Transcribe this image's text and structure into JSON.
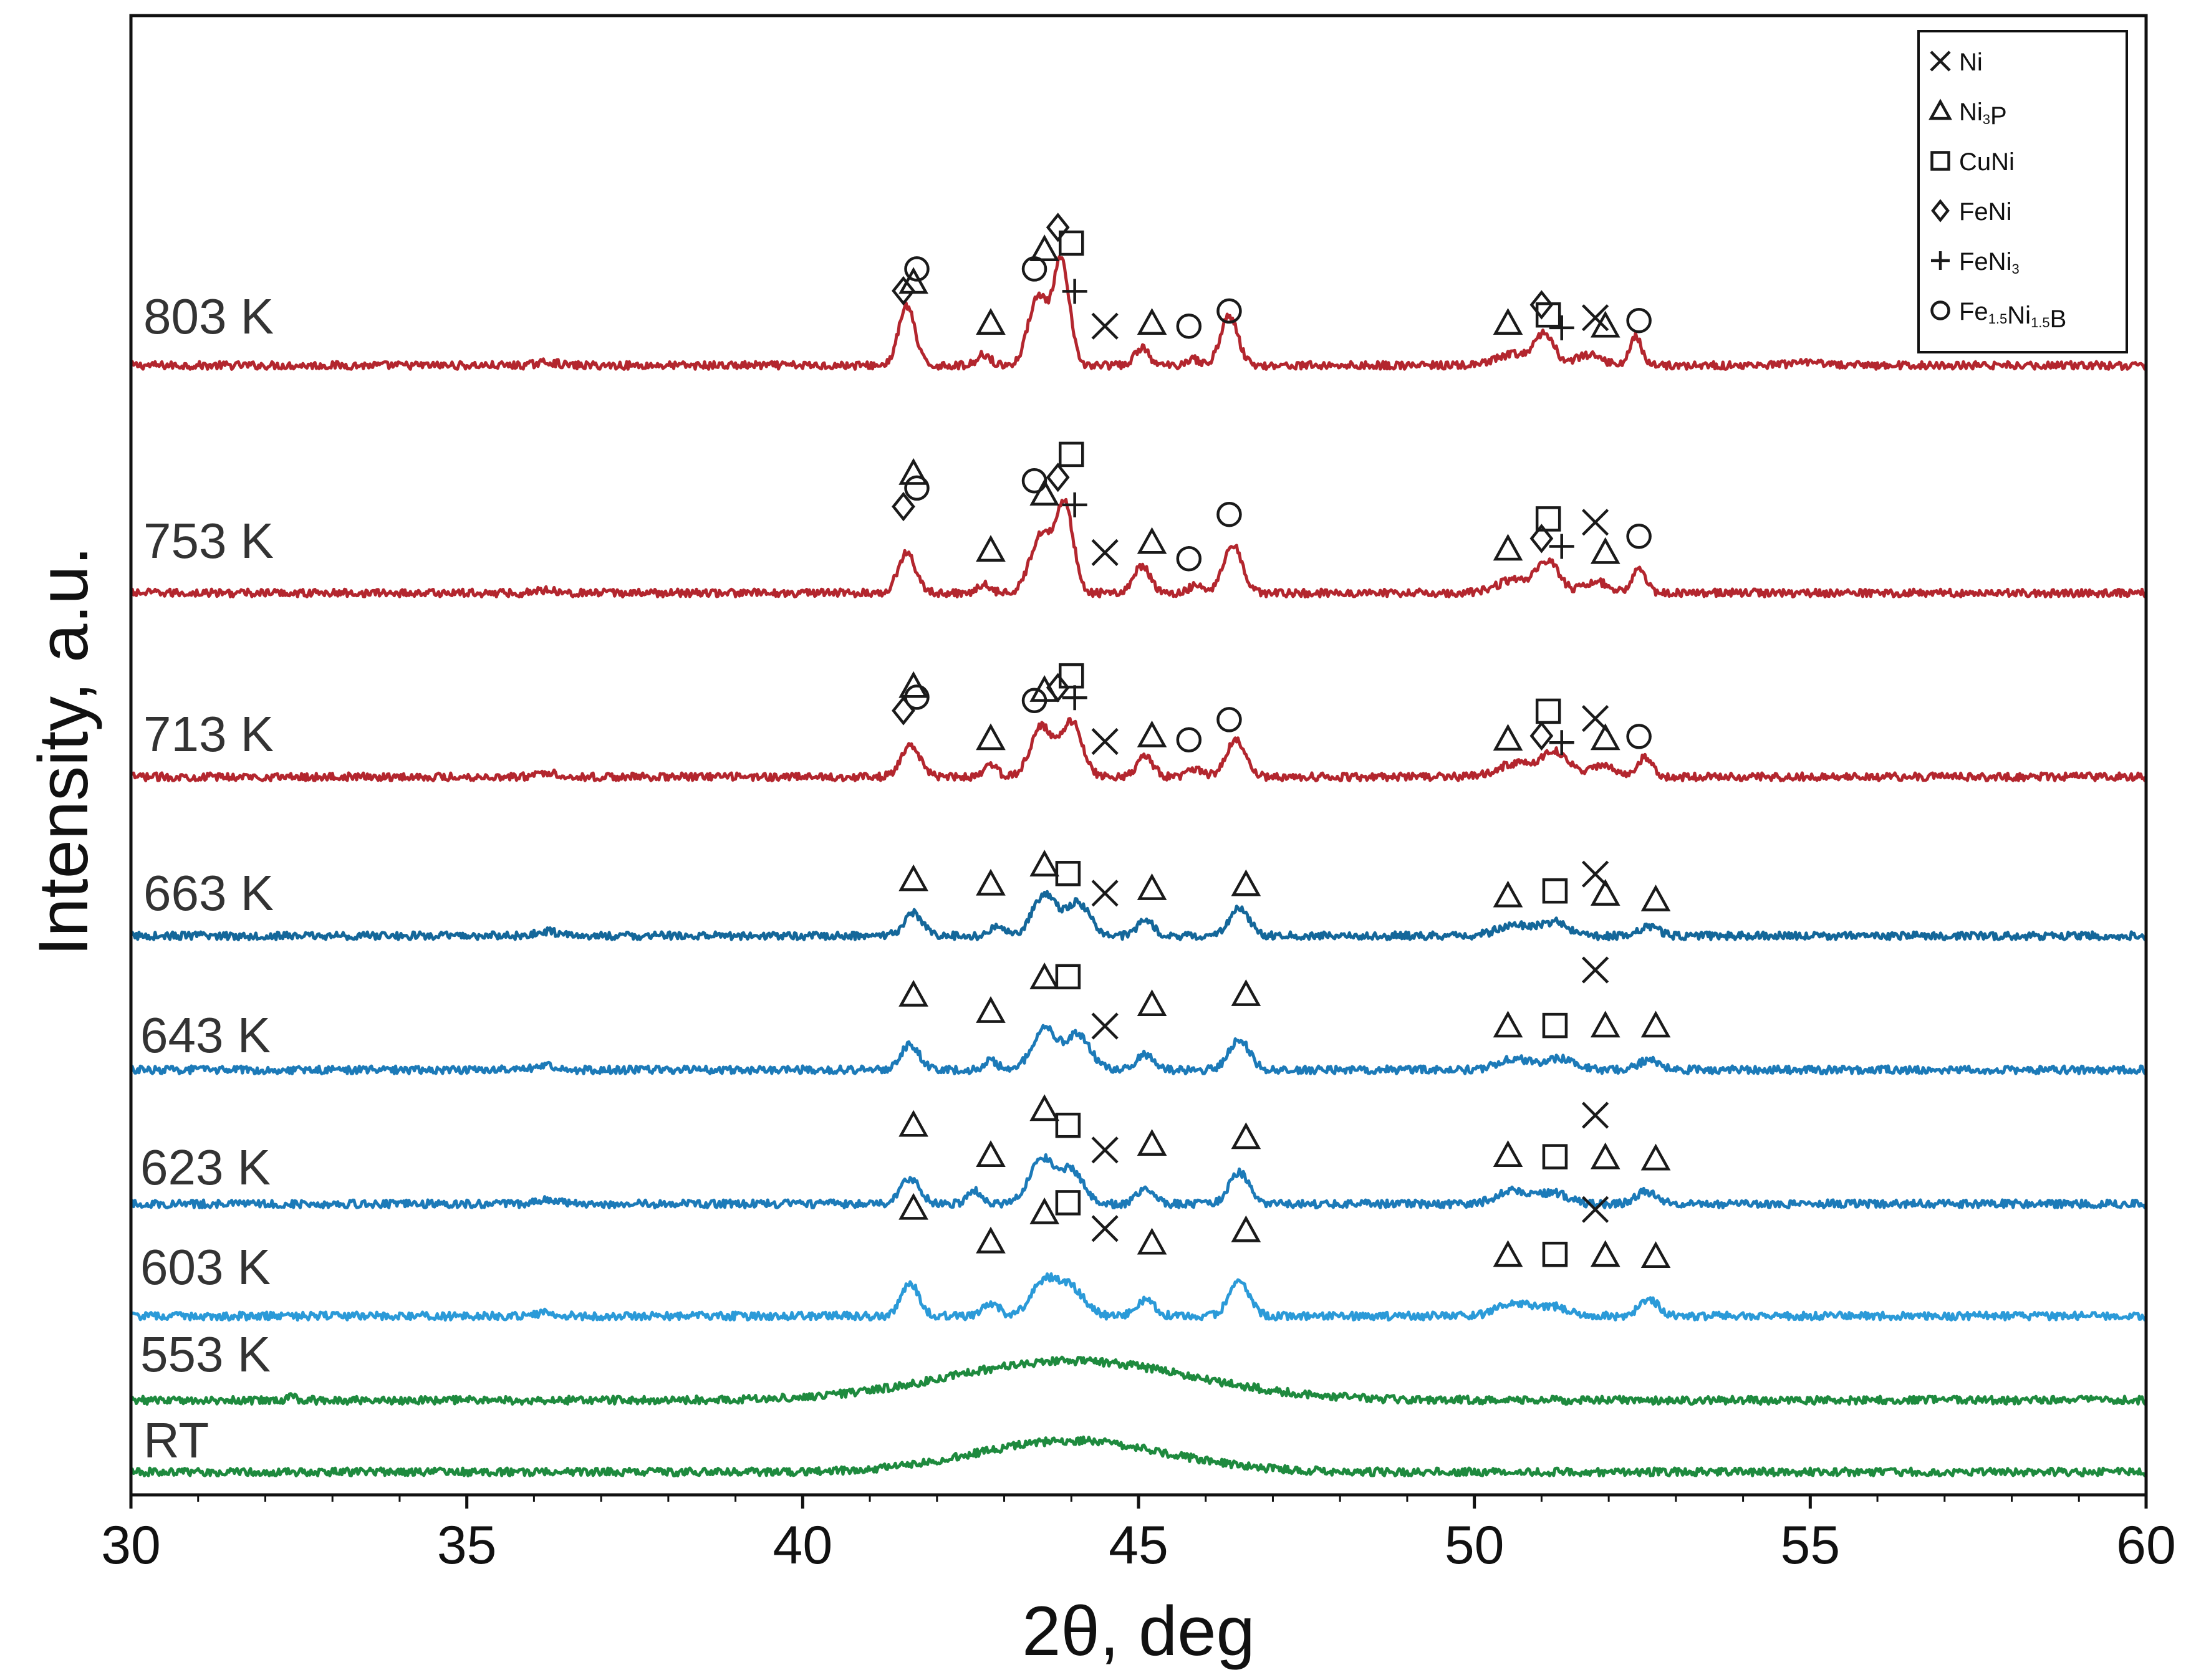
{
  "chart_data": {
    "type": "line",
    "title": "",
    "xlabel": "2θ, deg",
    "ylabel": "Intensity, a.u.",
    "xlim": [
      30,
      60
    ],
    "xticks": [
      30,
      35,
      40,
      45,
      50,
      55,
      60
    ],
    "yticks_shown": false,
    "colors": {
      "red": "#b3262e",
      "blue_dark": "#14679a",
      "blue_mid": "#1c7ab8",
      "blue_light": "#2b9ad8",
      "green": "#1e8a3e",
      "frame": "#111111",
      "marker": "#1a1a1a"
    },
    "legend": {
      "placement": "top-right",
      "entries": [
        {
          "marker": "x",
          "label": "Ni",
          "label_main": "Ni",
          "label_sub": "",
          "label_tail": ""
        },
        {
          "marker": "triangle",
          "label": "Ni3P",
          "label_main": "Ni",
          "label_sub": "3",
          "label_tail": "P"
        },
        {
          "marker": "square",
          "label": "CuNi",
          "label_main": "CuNi",
          "label_sub": "",
          "label_tail": ""
        },
        {
          "marker": "diamond",
          "label": "FeNi",
          "label_main": "FeNi",
          "label_sub": "",
          "label_tail": ""
        },
        {
          "marker": "plus",
          "label": "FeNi3",
          "label_main": "FeNi",
          "label_sub": "3",
          "label_tail": ""
        },
        {
          "marker": "circle",
          "label": "Fe1.5Ni1.5B",
          "label_main": "Fe",
          "label_sub": "1.5",
          "label_tail": "Ni",
          "label_sub2": "1.5",
          "label_tail2": "B"
        }
      ]
    },
    "series": [
      {
        "name": "803 K",
        "color": "#b3262e",
        "baseline": 0.16,
        "peaks": [
          [
            36.2,
            0.03,
            0.15
          ],
          [
            41.55,
            0.53,
            0.12
          ],
          [
            42.7,
            0.1,
            0.1
          ],
          [
            43.5,
            0.62,
            0.14
          ],
          [
            43.85,
            0.92,
            0.12
          ],
          [
            45.05,
            0.16,
            0.1
          ],
          [
            45.8,
            0.06,
            0.1
          ],
          [
            46.35,
            0.44,
            0.13
          ],
          [
            50.6,
            0.1,
            0.25
          ],
          [
            51.05,
            0.27,
            0.14
          ],
          [
            51.7,
            0.09,
            0.2
          ],
          [
            52.4,
            0.26,
            0.09
          ],
          [
            55.0,
            0.02,
            0.3
          ]
        ],
        "markers": [
          {
            "t": "diamond",
            "x": 41.5,
            "y": 0.825
          },
          {
            "t": "triangle",
            "x": 41.65,
            "y": 0.9
          },
          {
            "t": "circle",
            "x": 41.7,
            "y": 1.02
          },
          {
            "t": "triangle",
            "x": 42.8,
            "y": 0.535
          },
          {
            "t": "circle",
            "x": 43.45,
            "y": 1.02
          },
          {
            "t": "triangle",
            "x": 43.6,
            "y": 1.19
          },
          {
            "t": "diamond",
            "x": 43.8,
            "y": 1.39
          },
          {
            "t": "square",
            "x": 44.0,
            "y": 1.25
          },
          {
            "t": "plus",
            "x": 44.05,
            "y": 0.82
          },
          {
            "t": "x",
            "x": 44.5,
            "y": 0.51
          },
          {
            "t": "triangle",
            "x": 45.2,
            "y": 0.535
          },
          {
            "t": "circle",
            "x": 45.75,
            "y": 0.51
          },
          {
            "t": "circle",
            "x": 46.35,
            "y": 0.645
          },
          {
            "t": "triangle",
            "x": 50.5,
            "y": 0.535
          },
          {
            "t": "diamond",
            "x": 51.0,
            "y": 0.7
          },
          {
            "t": "square",
            "x": 51.1,
            "y": 0.61
          },
          {
            "t": "plus",
            "x": 51.3,
            "y": 0.495
          },
          {
            "t": "x",
            "x": 51.8,
            "y": 0.585
          },
          {
            "t": "triangle",
            "x": 51.95,
            "y": 0.51
          },
          {
            "t": "circle",
            "x": 52.45,
            "y": 0.56
          }
        ]
      },
      {
        "name": "753 K",
        "color": "#b3262e",
        "baseline": 0.16,
        "peaks": [
          [
            36.2,
            0.03,
            0.15
          ],
          [
            41.55,
            0.36,
            0.13
          ],
          [
            42.7,
            0.08,
            0.1
          ],
          [
            43.55,
            0.52,
            0.16
          ],
          [
            43.9,
            0.78,
            0.13
          ],
          [
            45.05,
            0.24,
            0.12
          ],
          [
            45.85,
            0.07,
            0.1
          ],
          [
            46.4,
            0.44,
            0.14
          ],
          [
            50.6,
            0.12,
            0.25
          ],
          [
            51.1,
            0.27,
            0.16
          ],
          [
            51.8,
            0.1,
            0.2
          ],
          [
            52.45,
            0.22,
            0.1
          ]
        ],
        "markers": [
          {
            "t": "triangle",
            "x": 41.65,
            "y": 1.225
          },
          {
            "t": "circle",
            "x": 41.7,
            "y": 1.095
          },
          {
            "t": "diamond",
            "x": 41.5,
            "y": 0.93
          },
          {
            "t": "triangle",
            "x": 42.8,
            "y": 0.54
          },
          {
            "t": "circle",
            "x": 43.45,
            "y": 1.16
          },
          {
            "t": "triangle",
            "x": 43.6,
            "y": 1.04
          },
          {
            "t": "diamond",
            "x": 43.8,
            "y": 1.19
          },
          {
            "t": "square",
            "x": 44.0,
            "y": 1.395
          },
          {
            "t": "plus",
            "x": 44.05,
            "y": 0.945
          },
          {
            "t": "x",
            "x": 44.5,
            "y": 0.52
          },
          {
            "t": "triangle",
            "x": 45.2,
            "y": 0.61
          },
          {
            "t": "circle",
            "x": 45.75,
            "y": 0.465
          },
          {
            "t": "circle",
            "x": 46.35,
            "y": 0.86
          },
          {
            "t": "triangle",
            "x": 50.5,
            "y": 0.55
          },
          {
            "t": "diamond",
            "x": 51.0,
            "y": 0.645
          },
          {
            "t": "square",
            "x": 51.1,
            "y": 0.82
          },
          {
            "t": "plus",
            "x": 51.3,
            "y": 0.575
          },
          {
            "t": "x",
            "x": 51.8,
            "y": 0.79
          },
          {
            "t": "triangle",
            "x": 51.95,
            "y": 0.52
          },
          {
            "t": "circle",
            "x": 52.45,
            "y": 0.665
          }
        ]
      },
      {
        "name": "713 K",
        "color": "#b3262e",
        "baseline": 0.16,
        "peaks": [
          [
            36.2,
            0.04,
            0.15
          ],
          [
            41.6,
            0.28,
            0.14
          ],
          [
            42.8,
            0.1,
            0.1
          ],
          [
            43.55,
            0.44,
            0.16
          ],
          [
            44.0,
            0.49,
            0.16
          ],
          [
            45.1,
            0.18,
            0.12
          ],
          [
            45.85,
            0.07,
            0.1
          ],
          [
            46.45,
            0.32,
            0.15
          ],
          [
            50.6,
            0.12,
            0.25
          ],
          [
            51.2,
            0.22,
            0.2
          ],
          [
            51.9,
            0.1,
            0.2
          ],
          [
            52.55,
            0.18,
            0.1
          ]
        ],
        "markers": [
          {
            "t": "triangle",
            "x": 41.65,
            "y": 0.965
          },
          {
            "t": "circle",
            "x": 41.7,
            "y": 0.87
          },
          {
            "t": "diamond",
            "x": 41.5,
            "y": 0.75
          },
          {
            "t": "triangle",
            "x": 42.8,
            "y": 0.5
          },
          {
            "t": "circle",
            "x": 43.45,
            "y": 0.84
          },
          {
            "t": "triangle",
            "x": 43.6,
            "y": 0.93
          },
          {
            "t": "diamond",
            "x": 43.8,
            "y": 0.955
          },
          {
            "t": "square",
            "x": 44.0,
            "y": 1.06
          },
          {
            "t": "plus",
            "x": 44.05,
            "y": 0.865
          },
          {
            "t": "x",
            "x": 44.5,
            "y": 0.475
          },
          {
            "t": "triangle",
            "x": 45.2,
            "y": 0.525
          },
          {
            "t": "circle",
            "x": 45.75,
            "y": 0.49
          },
          {
            "t": "circle",
            "x": 46.35,
            "y": 0.67
          },
          {
            "t": "triangle",
            "x": 50.5,
            "y": 0.495
          },
          {
            "t": "diamond",
            "x": 51.0,
            "y": 0.525
          },
          {
            "t": "square",
            "x": 51.1,
            "y": 0.745
          },
          {
            "t": "plus",
            "x": 51.3,
            "y": 0.465
          },
          {
            "t": "x",
            "x": 51.8,
            "y": 0.68
          },
          {
            "t": "triangle",
            "x": 51.95,
            "y": 0.5
          },
          {
            "t": "circle",
            "x": 52.45,
            "y": 0.52
          }
        ]
      },
      {
        "name": "663 K",
        "color": "#14679a",
        "baseline": 0.16,
        "peaks": [
          [
            36.2,
            0.04,
            0.15
          ],
          [
            41.65,
            0.2,
            0.14
          ],
          [
            42.9,
            0.08,
            0.1
          ],
          [
            43.6,
            0.36,
            0.18
          ],
          [
            44.1,
            0.29,
            0.18
          ],
          [
            45.1,
            0.14,
            0.12
          ],
          [
            46.5,
            0.24,
            0.15
          ],
          [
            50.6,
            0.1,
            0.25
          ],
          [
            51.2,
            0.12,
            0.2
          ],
          [
            52.6,
            0.08,
            0.15
          ]
        ],
        "markers": [
          {
            "t": "triangle",
            "x": 41.65,
            "y": 0.66
          },
          {
            "t": "triangle",
            "x": 42.8,
            "y": 0.62
          },
          {
            "t": "triangle",
            "x": 43.6,
            "y": 0.79
          },
          {
            "t": "square",
            "x": 43.95,
            "y": 0.715
          },
          {
            "t": "x",
            "x": 44.5,
            "y": 0.54
          },
          {
            "t": "triangle",
            "x": 45.2,
            "y": 0.58
          },
          {
            "t": "triangle",
            "x": 46.6,
            "y": 0.615
          },
          {
            "t": "triangle",
            "x": 50.5,
            "y": 0.515
          },
          {
            "t": "square",
            "x": 51.2,
            "y": 0.56
          },
          {
            "t": "x",
            "x": 51.8,
            "y": 0.71
          },
          {
            "t": "triangle",
            "x": 51.95,
            "y": 0.53
          },
          {
            "t": "triangle",
            "x": 52.7,
            "y": 0.48
          }
        ]
      },
      {
        "name": "643 K",
        "color": "#1c7ab8",
        "baseline": 0.16,
        "peaks": [
          [
            36.2,
            0.04,
            0.15
          ],
          [
            41.6,
            0.22,
            0.14
          ],
          [
            42.8,
            0.08,
            0.1
          ],
          [
            43.6,
            0.37,
            0.18
          ],
          [
            44.1,
            0.31,
            0.18
          ],
          [
            45.1,
            0.14,
            0.12
          ],
          [
            46.5,
            0.27,
            0.15
          ],
          [
            50.6,
            0.1,
            0.25
          ],
          [
            51.3,
            0.1,
            0.2
          ],
          [
            52.6,
            0.09,
            0.15
          ]
        ],
        "markers": [
          {
            "t": "triangle",
            "x": 41.65,
            "y": 0.825
          },
          {
            "t": "triangle",
            "x": 42.8,
            "y": 0.68
          },
          {
            "t": "triangle",
            "x": 43.6,
            "y": 0.98
          },
          {
            "t": "square",
            "x": 43.95,
            "y": 0.99
          },
          {
            "t": "x",
            "x": 44.5,
            "y": 0.55
          },
          {
            "t": "triangle",
            "x": 45.2,
            "y": 0.74
          },
          {
            "t": "triangle",
            "x": 46.6,
            "y": 0.83
          },
          {
            "t": "triangle",
            "x": 50.5,
            "y": 0.55
          },
          {
            "t": "square",
            "x": 51.2,
            "y": 0.555
          },
          {
            "t": "x",
            "x": 51.8,
            "y": 1.05
          },
          {
            "t": "triangle",
            "x": 51.95,
            "y": 0.55
          },
          {
            "t": "triangle",
            "x": 52.7,
            "y": 0.55
          }
        ]
      },
      {
        "name": "623 K",
        "color": "#1c7ab8",
        "baseline": 0.16,
        "peaks": [
          [
            36.2,
            0.04,
            0.15
          ],
          [
            41.6,
            0.23,
            0.14
          ],
          [
            42.55,
            0.12,
            0.1
          ],
          [
            43.55,
            0.4,
            0.18
          ],
          [
            44.0,
            0.3,
            0.18
          ],
          [
            45.1,
            0.15,
            0.12
          ],
          [
            46.5,
            0.28,
            0.15
          ],
          [
            50.6,
            0.12,
            0.25
          ],
          [
            51.2,
            0.09,
            0.2
          ],
          [
            52.55,
            0.11,
            0.15
          ]
        ],
        "markers": [
          {
            "t": "triangle",
            "x": 41.65,
            "y": 0.86
          },
          {
            "t": "triangle",
            "x": 42.8,
            "y": 0.59
          },
          {
            "t": "triangle",
            "x": 43.6,
            "y": 1.0
          },
          {
            "t": "square",
            "x": 43.95,
            "y": 0.86
          },
          {
            "t": "x",
            "x": 44.5,
            "y": 0.64
          },
          {
            "t": "triangle",
            "x": 45.2,
            "y": 0.69
          },
          {
            "t": "triangle",
            "x": 46.6,
            "y": 0.75
          },
          {
            "t": "triangle",
            "x": 50.5,
            "y": 0.59
          },
          {
            "t": "square",
            "x": 51.2,
            "y": 0.58
          },
          {
            "t": "x",
            "x": 51.8,
            "y": 0.95
          },
          {
            "t": "triangle",
            "x": 51.95,
            "y": 0.57
          },
          {
            "t": "triangle",
            "x": 52.7,
            "y": 0.56
          }
        ]
      },
      {
        "name": "603 K",
        "color": "#2b9ad8",
        "baseline": 0.16,
        "peaks": [
          [
            36.2,
            0.03,
            0.15
          ],
          [
            41.6,
            0.3,
            0.13
          ],
          [
            42.8,
            0.12,
            0.12
          ],
          [
            43.6,
            0.3,
            0.2
          ],
          [
            44.0,
            0.24,
            0.2
          ],
          [
            45.1,
            0.14,
            0.14
          ],
          [
            46.5,
            0.3,
            0.15
          ],
          [
            50.6,
            0.12,
            0.25
          ],
          [
            51.2,
            0.08,
            0.2
          ],
          [
            52.6,
            0.14,
            0.15
          ]
        ],
        "markers": [
          {
            "t": "triangle",
            "x": 41.65,
            "y": 1.12
          },
          {
            "t": "triangle",
            "x": 42.8,
            "y": 0.82
          },
          {
            "t": "triangle",
            "x": 43.6,
            "y": 1.08
          },
          {
            "t": "square",
            "x": 43.95,
            "y": 1.17
          },
          {
            "t": "x",
            "x": 44.5,
            "y": 0.94
          },
          {
            "t": "triangle",
            "x": 45.2,
            "y": 0.81
          },
          {
            "t": "triangle",
            "x": 46.6,
            "y": 0.92
          },
          {
            "t": "triangle",
            "x": 50.5,
            "y": 0.7
          },
          {
            "t": "square",
            "x": 51.2,
            "y": 0.71
          },
          {
            "t": "x",
            "x": 51.8,
            "y": 1.11
          },
          {
            "t": "triangle",
            "x": 51.95,
            "y": 0.7
          },
          {
            "t": "triangle",
            "x": 52.7,
            "y": 0.69
          }
        ]
      },
      {
        "name": "553 K",
        "color": "#1e8a3e",
        "baseline": 0.16,
        "peaks": [
          [
            32.4,
            0.03,
            0.05
          ],
          [
            44.0,
            0.35,
            1.8
          ]
        ],
        "markers": []
      },
      {
        "name": "RT",
        "color": "#1e8a3e",
        "baseline": 0.16,
        "peaks": [
          [
            44.0,
            0.28,
            1.4
          ]
        ],
        "markers": []
      }
    ]
  }
}
